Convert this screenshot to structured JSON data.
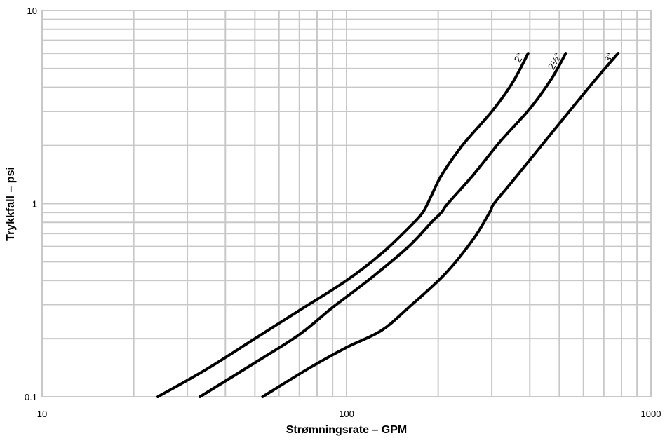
{
  "chart_data": {
    "type": "line",
    "title": "",
    "xlabel": "Strømningsrate – GPM",
    "ylabel": "Trykkfall – psi",
    "x_scale": "log",
    "y_scale": "log",
    "xlim": [
      10,
      1000
    ],
    "ylim": [
      0.1,
      10
    ],
    "grid": true,
    "legend": "none",
    "x_ticks": [
      {
        "value": 10,
        "label": "10"
      },
      {
        "value": 100,
        "label": "100"
      },
      {
        "value": 1000,
        "label": "1000"
      }
    ],
    "y_ticks": [
      {
        "value": 0.1,
        "label": "0.1"
      },
      {
        "value": 1,
        "label": "1"
      },
      {
        "value": 10,
        "label": "10"
      }
    ],
    "series": [
      {
        "name": "2\"",
        "x": [
          24,
          35,
          50,
          70,
          100,
          130,
          160,
          178,
          190,
          205,
          240,
          300,
          350,
          395
        ],
        "y": [
          0.1,
          0.14,
          0.2,
          0.28,
          0.4,
          0.55,
          0.75,
          0.9,
          1.1,
          1.4,
          2.0,
          3.0,
          4.2,
          6.0
        ]
      },
      {
        "name": "2½\"",
        "x": [
          33,
          50,
          70,
          90,
          120,
          160,
          190,
          205,
          215,
          260,
          320,
          400,
          470,
          525
        ],
        "y": [
          0.1,
          0.15,
          0.21,
          0.29,
          0.41,
          0.6,
          0.8,
          0.9,
          1.0,
          1.4,
          2.1,
          3.1,
          4.4,
          6.0
        ]
      },
      {
        "name": "3\"",
        "x": [
          53,
          75,
          100,
          130,
          160,
          210,
          260,
          295,
          305,
          350,
          420,
          520,
          650,
          780
        ],
        "y": [
          0.1,
          0.14,
          0.18,
          0.22,
          0.29,
          0.43,
          0.65,
          0.9,
          1.0,
          1.3,
          1.85,
          2.8,
          4.3,
          6.0
        ]
      }
    ]
  }
}
